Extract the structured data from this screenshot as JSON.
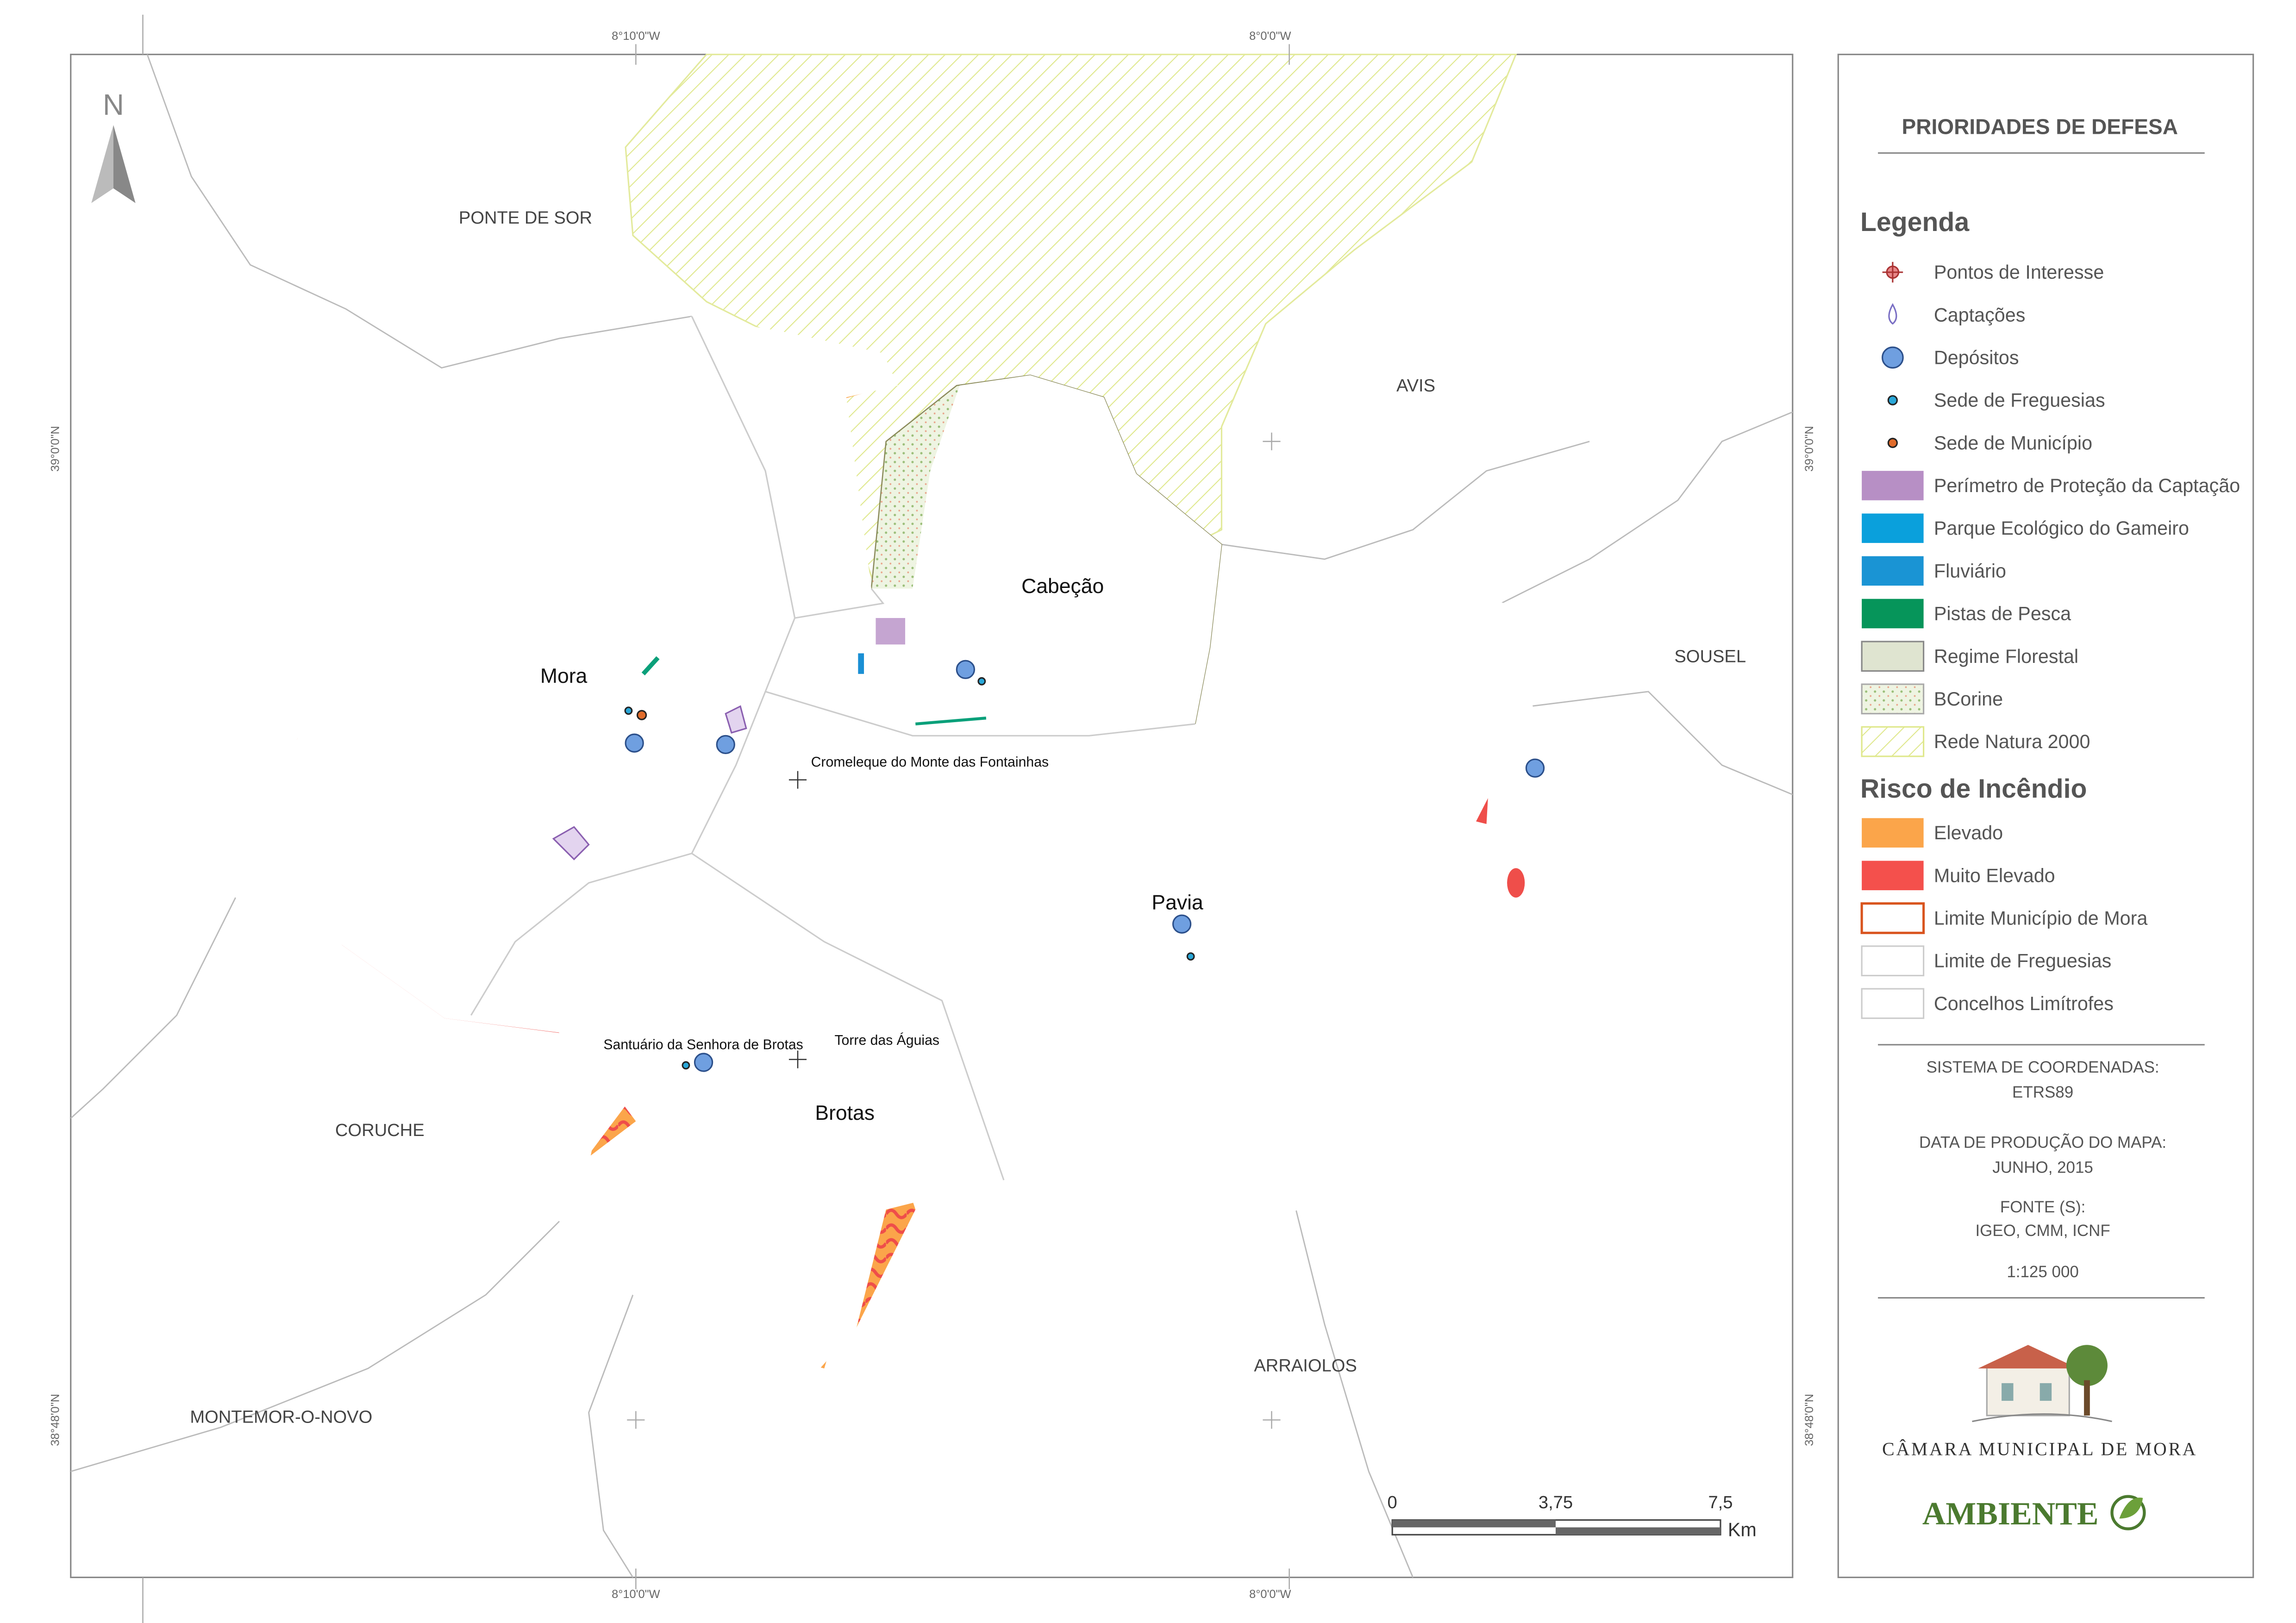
{
  "title": "PRIORIDADES DE DEFESA",
  "north": "N",
  "legend": {
    "title": "Legenda",
    "items": [
      "Pontos de Interesse",
      "Captações",
      "Depósitos",
      "Sede de Freguesias",
      "Sede de Município",
      "Perímetro de Proteção da Captação",
      "Parque Ecológico do Gameiro",
      "Fluviário",
      "Pistas de Pesca",
      "Regime Florestal",
      "BCorine",
      "Rede Natura 2000"
    ]
  },
  "risk": {
    "title": "Risco de Incêndio",
    "items": [
      "Elevado",
      "Muito Elevado",
      "Limite Município de Mora",
      "Limite de Freguesias",
      "Concelhos Limítrofes"
    ]
  },
  "info": {
    "coordinate_system": {
      "label": "SISTEMA DE COORDENADAS:",
      "value": "ETRS89"
    },
    "production_date": {
      "label": "DATA DE PRODUÇÃO DO MAPA:",
      "value": "JUNHO, 2015"
    },
    "sources": {
      "label": "FONTE (S):",
      "value": "IGEO, CMM, ICNF"
    },
    "scale": "1:125 000"
  },
  "logo": {
    "name": "CÂMARA MUNICIPAL DE MORA",
    "brand": "AMBIENTE"
  },
  "places": {
    "parishes": [
      "Mora",
      "Cabeção",
      "Pavia",
      "Brotas"
    ],
    "points": [
      "Cromeleque do Monte das Fontainhas",
      "Santuário da Senhora de Brotas",
      "Torre das Águias"
    ],
    "neighbors": [
      "PONTE DE SOR",
      "AVIS",
      "SOUSEL",
      "CORUCHE",
      "ARRAIOLOS",
      "MONTEMOR-O-NOVO"
    ]
  },
  "graticule": {
    "longitudes": [
      "8°10'0\"W",
      "8°0'0\"W"
    ],
    "latitudes": [
      "39°0'0\"N",
      "38°48'0\"N"
    ]
  },
  "scale_bar": {
    "ticks": [
      "0",
      "3,75",
      "7,5"
    ],
    "unit": "Km"
  }
}
